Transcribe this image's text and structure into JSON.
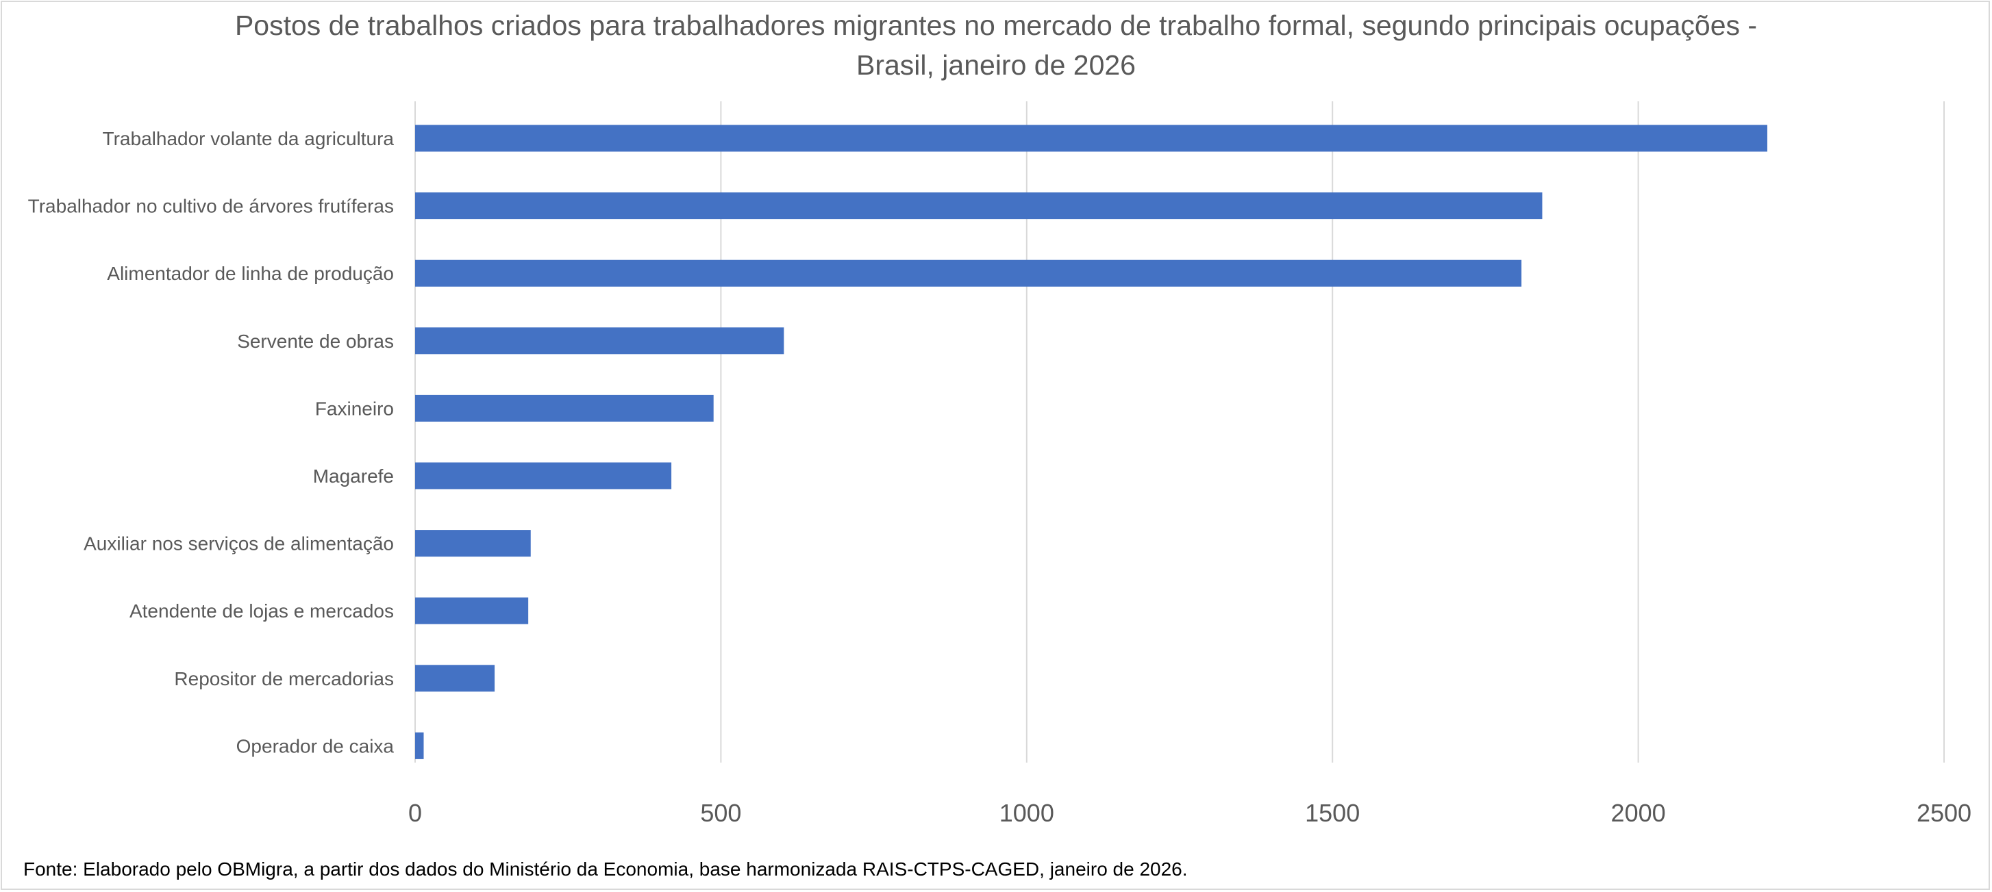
{
  "chart_data": {
    "type": "bar",
    "orientation": "horizontal",
    "title_lines": [
      "Postos de trabalhos criados para trabalhadores migrantes no mercado de trabalho formal,  segundo principais ocupações -",
      "Brasil, janeiro de 2026"
    ],
    "categories": [
      "Trabalhador volante da agricultura",
      "Trabalhador no cultivo de árvores frutíferas",
      "Alimentador de linha de produção",
      "Servente de obras",
      "Faxineiro",
      "Magarefe",
      "Auxiliar nos serviços de alimentação",
      "Atendente de lojas e mercados",
      "Repositor de mercadorias",
      "Operador de caixa"
    ],
    "values": [
      2211,
      1843,
      1809,
      603,
      488,
      419,
      189,
      185,
      130,
      14
    ],
    "xlim": [
      0,
      2500
    ],
    "xticks": [
      "0",
      "500",
      "1000",
      "1500",
      "2000",
      "2500"
    ],
    "xlabel": "",
    "ylabel": "",
    "grid": true,
    "bar_color": "#4472C4",
    "source_note": "Fonte: Elaborado pelo OBMigra,  a partir dos dados do Ministério da Economia, base harmonizada RAIS-CTPS-CAGED, janeiro de 2026."
  }
}
